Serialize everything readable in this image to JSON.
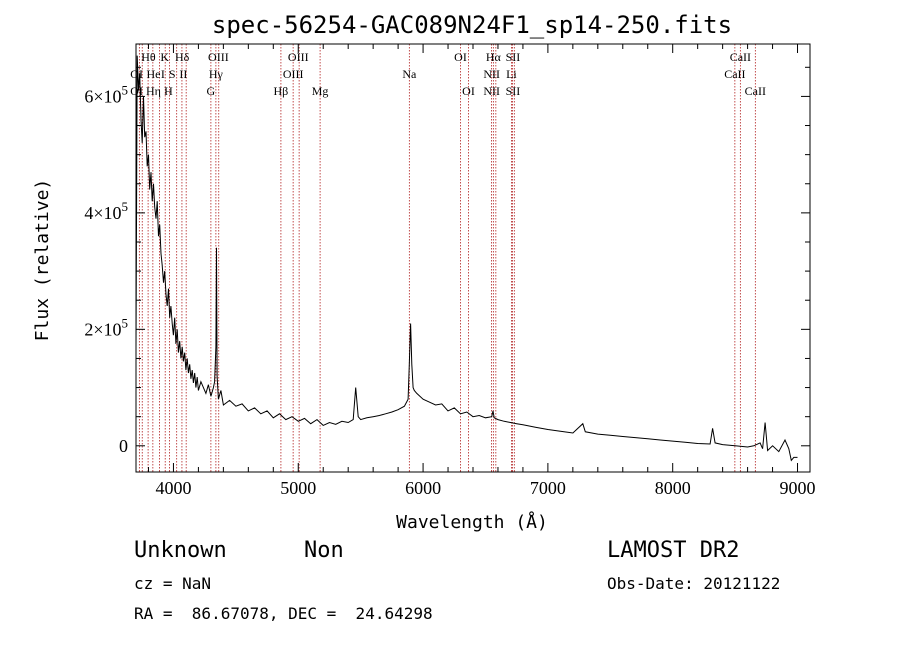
{
  "chart_data": {
    "type": "line",
    "title": "spec-56254-GAC089N24F1_sp14-250.fits",
    "xlabel": "Wavelength (Å)",
    "ylabel": "Flux (relative)",
    "xlim": [
      3700,
      9100
    ],
    "ylim": [
      -45000,
      690000
    ],
    "xticks": [
      4000,
      5000,
      6000,
      7000,
      8000,
      9000
    ],
    "yticks": [
      {
        "value": 0,
        "mantissa": "0",
        "exponent": ""
      },
      {
        "value": 200000,
        "mantissa": "2×10",
        "exponent": "5"
      },
      {
        "value": 400000,
        "mantissa": "4×10",
        "exponent": "5"
      },
      {
        "value": 600000,
        "mantissa": "6×10",
        "exponent": "5"
      }
    ],
    "series": [
      {
        "x": [
          3700,
          3710,
          3720,
          3730,
          3740,
          3750,
          3760,
          3770,
          3780,
          3790,
          3800,
          3810,
          3820,
          3830,
          3840,
          3850,
          3860,
          3870,
          3880,
          3890,
          3900,
          3910,
          3920,
          3930,
          3940,
          3950,
          3960,
          3970,
          3980,
          3990,
          4000,
          4010,
          4020,
          4030,
          4040,
          4050,
          4060,
          4070,
          4080,
          4090,
          4100,
          4110,
          4120,
          4130,
          4140,
          4150,
          4160,
          4170,
          4180,
          4190,
          4200,
          4220,
          4240,
          4260,
          4280,
          4300,
          4320,
          4330,
          4340,
          4345,
          4350,
          4360,
          4380,
          4400,
          4450,
          4500,
          4550,
          4600,
          4650,
          4700,
          4750,
          4800,
          4850,
          4900,
          4950,
          5000,
          5050,
          5100,
          5150,
          5200,
          5250,
          5300,
          5350,
          5400,
          5440,
          5460,
          5480,
          5500,
          5550,
          5600,
          5650,
          5700,
          5750,
          5800,
          5850,
          5880,
          5890,
          5900,
          5910,
          5920,
          5930,
          5950,
          6000,
          6050,
          6100,
          6150,
          6200,
          6250,
          6300,
          6350,
          6400,
          6450,
          6500,
          6550,
          6560,
          6570,
          6600,
          6650,
          6700,
          6750,
          6800,
          6850,
          6900,
          7000,
          7100,
          7200,
          7280,
          7300,
          7400,
          7500,
          7600,
          7700,
          7800,
          7900,
          8000,
          8100,
          8200,
          8300,
          8320,
          8340,
          8400,
          8500,
          8600,
          8650,
          8700,
          8720,
          8740,
          8760,
          8800,
          8850,
          8900,
          8930,
          8950,
          8970,
          9000
        ],
        "y": [
          170000,
          670000,
          610000,
          640000,
          560000,
          520000,
          600000,
          530000,
          540000,
          480000,
          500000,
          440000,
          470000,
          420000,
          450000,
          410000,
          390000,
          420000,
          360000,
          380000,
          330000,
          310000,
          280000,
          300000,
          260000,
          240000,
          270000,
          220000,
          240000,
          210000,
          190000,
          220000,
          175000,
          200000,
          160000,
          180000,
          150000,
          170000,
          145000,
          160000,
          130000,
          150000,
          125000,
          140000,
          115000,
          130000,
          108000,
          125000,
          100000,
          118000,
          95000,
          110000,
          100000,
          90000,
          105000,
          85000,
          100000,
          110000,
          170000,
          340000,
          120000,
          80000,
          95000,
          70000,
          78000,
          68000,
          72000,
          60000,
          65000,
          55000,
          60000,
          48000,
          55000,
          45000,
          50000,
          42000,
          47000,
          38000,
          45000,
          35000,
          40000,
          37000,
          42000,
          40000,
          45000,
          100000,
          50000,
          45000,
          48000,
          50000,
          52000,
          55000,
          58000,
          62000,
          68000,
          80000,
          140000,
          210000,
          140000,
          100000,
          95000,
          90000,
          80000,
          75000,
          70000,
          72000,
          60000,
          65000,
          55000,
          58000,
          50000,
          52000,
          48000,
          50000,
          60000,
          48000,
          45000,
          42000,
          40000,
          38000,
          36000,
          34000,
          32000,
          28000,
          25000,
          22000,
          38000,
          24000,
          20000,
          18000,
          16000,
          14000,
          12000,
          10000,
          8000,
          6000,
          4000,
          3000,
          30000,
          5000,
          2000,
          0,
          -2000,
          0,
          5000,
          -5000,
          40000,
          -8000,
          0,
          -10000,
          10000,
          -5000,
          -25000,
          -20000,
          -20000
        ]
      }
    ],
    "line_labels": [
      {
        "text": "Hθ",
        "x": 3800,
        "row": 1
      },
      {
        "text": "OI",
        "x": 3705,
        "row": 2
      },
      {
        "text": "OI",
        "x": 3705,
        "row": 3
      },
      {
        "text": "He",
        "x": 3840,
        "row": 2
      },
      {
        "text": "Hη",
        "x": 3840,
        "row": 3
      },
      {
        "text": "K",
        "x": 3930,
        "row": 1
      },
      {
        "text": "I",
        "x": 3915,
        "row": 2
      },
      {
        "text": "H",
        "x": 3960,
        "row": 3
      },
      {
        "text": "Hδ",
        "x": 4070,
        "row": 1
      },
      {
        "text": "S",
        "x": 3990,
        "row": 2
      },
      {
        "text": "II",
        "x": 4080,
        "row": 2
      },
      {
        "text": "OIII",
        "x": 4360,
        "row": 1
      },
      {
        "text": "Hγ",
        "x": 4340,
        "row": 2
      },
      {
        "text": "G",
        "x": 4300,
        "row": 3
      },
      {
        "text": "Hβ",
        "x": 4861,
        "row": 3
      },
      {
        "text": "OIII",
        "x": 5000,
        "row": 1
      },
      {
        "text": "OIII",
        "x": 4959,
        "row": 2
      },
      {
        "text": "Mg",
        "x": 5175,
        "row": 3
      },
      {
        "text": "Na",
        "x": 5890,
        "row": 2
      },
      {
        "text": "OI",
        "x": 6300,
        "row": 1
      },
      {
        "text": "OI",
        "x": 6364,
        "row": 3
      },
      {
        "text": "Hα",
        "x": 6563,
        "row": 1
      },
      {
        "text": "NII",
        "x": 6550,
        "row": 2
      },
      {
        "text": "NII",
        "x": 6550,
        "row": 3
      },
      {
        "text": "SII",
        "x": 6720,
        "row": 1
      },
      {
        "text": "Li",
        "x": 6708,
        "row": 2
      },
      {
        "text": "SII",
        "x": 6720,
        "row": 3
      },
      {
        "text": "CaII",
        "x": 8542,
        "row": 1
      },
      {
        "text": "CaII",
        "x": 8498,
        "row": 2
      },
      {
        "text": "CaII",
        "x": 8662,
        "row": 3
      }
    ],
    "line_markers": [
      3727,
      3750,
      3797,
      3835,
      3889,
      3934,
      3969,
      4026,
      4068,
      4102,
      4300,
      4340,
      4363,
      4861,
      4959,
      5007,
      5175,
      5890,
      6300,
      6364,
      6548,
      6563,
      6583,
      6708,
      6716,
      6731,
      8498,
      8542,
      8662
    ],
    "grid": false
  },
  "info": {
    "object_class": "Unknown",
    "subclass": "Non",
    "survey": "LAMOST DR2",
    "cz": "cz = NaN",
    "obs_date": "Obs-Date: 20121122",
    "coords": "RA =  86.67078, DEC =  24.64298"
  }
}
